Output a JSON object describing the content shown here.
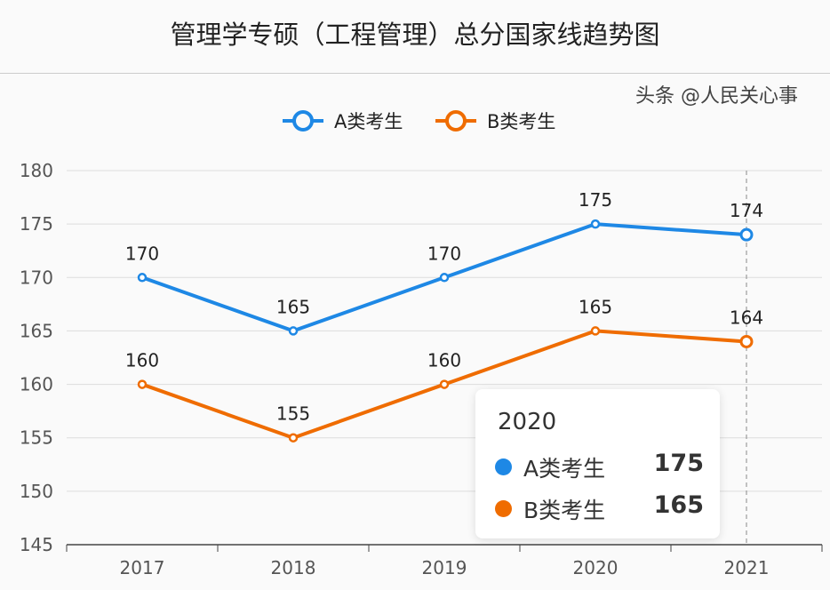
{
  "chart_data": {
    "type": "line",
    "title": "管理学专硕（工程管理）总分国家线趋势图",
    "categories": [
      "2017",
      "2018",
      "2019",
      "2020",
      "2021"
    ],
    "series": [
      {
        "name": "A类考生",
        "values": [
          170,
          165,
          170,
          175,
          174
        ],
        "color": "#1e88e5"
      },
      {
        "name": "B类考生",
        "values": [
          160,
          155,
          160,
          165,
          164
        ],
        "color": "#ef6c00"
      }
    ],
    "ylim": [
      145,
      180
    ],
    "yticks": [
      145,
      150,
      155,
      160,
      165,
      170,
      175,
      180
    ],
    "grid": true,
    "legend_position": "top",
    "tooltip": {
      "title": "2020",
      "rows": [
        {
          "name": "A类考生",
          "value": "175"
        },
        {
          "name": "B类考生",
          "value": "165"
        }
      ]
    }
  },
  "watermark": "头条 @人民关心事"
}
